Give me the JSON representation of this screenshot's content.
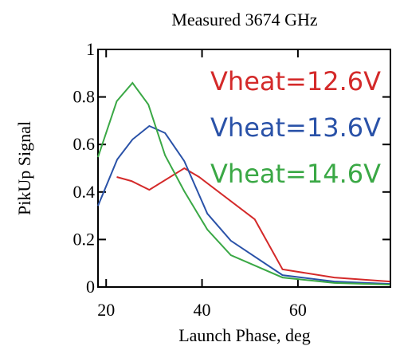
{
  "chart_data": {
    "type": "line",
    "title": "Measured 3674 GHz",
    "x_label": "Launch Phase, deg",
    "y_label": "PikUp Signal",
    "xlim": [
      18.3,
      79.3
    ],
    "ylim": [
      0,
      1
    ],
    "xticks": [
      20,
      40,
      60
    ],
    "yticks": [
      0,
      0.2,
      0.4,
      0.6,
      0.8,
      1
    ],
    "series": [
      {
        "name": "Vheat=12.6V",
        "color": "#d42a2a",
        "x": [
          22.2,
          25.3,
          29.0,
          36.3,
          39.4,
          51.0,
          56.8,
          67.6,
          79.2
        ],
        "values": [
          0.463,
          0.446,
          0.409,
          0.5,
          0.463,
          0.285,
          0.074,
          0.04,
          0.023
        ]
      },
      {
        "name": "Vheat=13.6V",
        "color": "#2a52a8",
        "x": [
          18.3,
          22.3,
          25.5,
          29.0,
          32.3,
          36.3,
          41.1,
          46.0,
          56.8,
          67.6,
          79.2
        ],
        "values": [
          0.342,
          0.537,
          0.621,
          0.678,
          0.648,
          0.53,
          0.309,
          0.195,
          0.05,
          0.023,
          0.013
        ]
      },
      {
        "name": "Vheat=14.6V",
        "color": "#3aa845",
        "x": [
          18.3,
          22.2,
          25.5,
          28.8,
          32.3,
          36.3,
          41.1,
          46.0,
          56.8,
          67.6,
          79.2
        ],
        "values": [
          0.547,
          0.782,
          0.859,
          0.768,
          0.554,
          0.403,
          0.242,
          0.134,
          0.04,
          0.017,
          0.01
        ]
      }
    ]
  }
}
